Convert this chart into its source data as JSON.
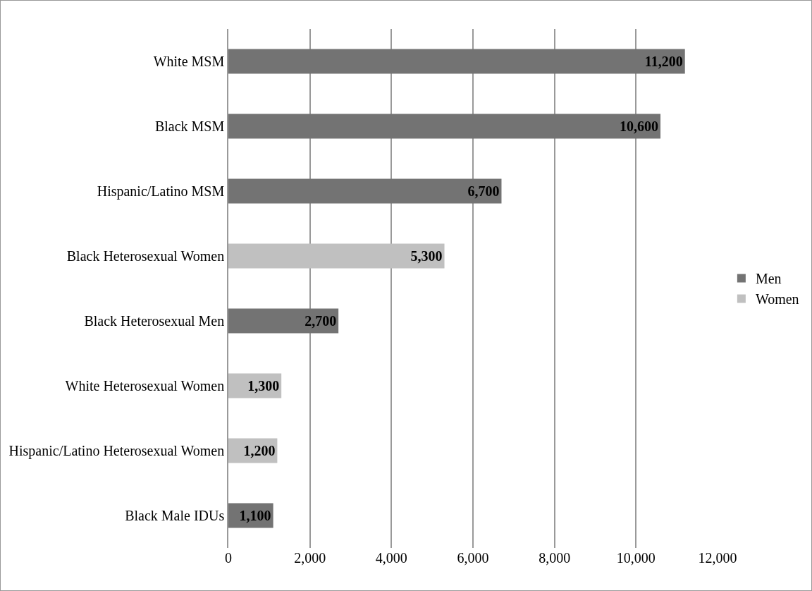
{
  "chart_data": {
    "type": "bar",
    "orientation": "horizontal",
    "categories": [
      "White MSM",
      "Black MSM",
      "Hispanic/Latino MSM",
      "Black Heterosexual Women",
      "Black Heterosexual Men",
      "White Heterosexual Women",
      "Hispanic/Latino Heterosexual Women",
      "Black Male IDUs"
    ],
    "series": [
      {
        "name": "Men",
        "color": "#737373",
        "values": [
          11200,
          10600,
          6700,
          null,
          2700,
          null,
          null,
          1100
        ],
        "value_labels": [
          "11,200",
          "10,600",
          "6,700",
          null,
          "2,700",
          null,
          null,
          "1,100"
        ]
      },
      {
        "name": "Women",
        "color": "#c0c0c0",
        "values": [
          null,
          null,
          null,
          5300,
          null,
          1300,
          1200,
          null
        ],
        "value_labels": [
          null,
          null,
          null,
          "5,300",
          null,
          "1,300",
          "1,200",
          null
        ]
      }
    ],
    "xlim": [
      0,
      12000
    ],
    "xticks": [
      0,
      {
        "value": 2000,
        "label": "2,000"
      },
      {
        "value": 4000,
        "label": "4,000"
      },
      {
        "value": 6000,
        "label": "6,000"
      },
      {
        "value": 8000,
        "label": "8,000"
      },
      {
        "value": 10000,
        "label": "10,000"
      },
      {
        "value": 12000,
        "label": "12,000"
      }
    ],
    "grid": "x",
    "legend": "right"
  }
}
